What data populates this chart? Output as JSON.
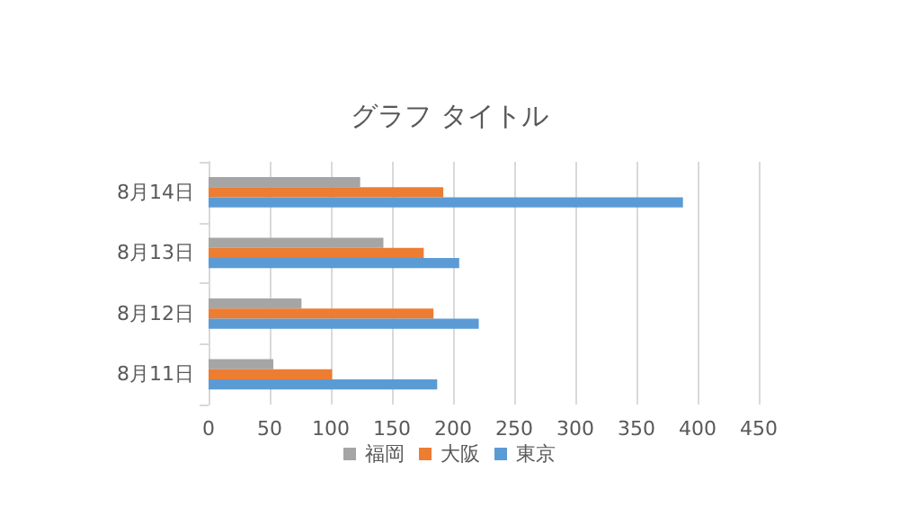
{
  "chart_data": {
    "type": "bar",
    "orientation": "horizontal",
    "title": "グラフ タイトル",
    "categories": [
      "8月14日",
      "8月13日",
      "8月12日",
      "8月11日"
    ],
    "series": [
      {
        "name": "福岡",
        "color": "#a5a5a5",
        "values": [
          124,
          143,
          76,
          53
        ]
      },
      {
        "name": "大阪",
        "color": "#ed7d31",
        "values": [
          192,
          176,
          184,
          101
        ]
      },
      {
        "name": "東京",
        "color": "#5b9bd5",
        "values": [
          388,
          205,
          221,
          187
        ]
      }
    ],
    "xlim": [
      0,
      450
    ],
    "xticks": [
      0,
      50,
      100,
      150,
      200,
      250,
      300,
      350,
      400,
      450
    ],
    "grid": "x",
    "legend": "bottom"
  }
}
